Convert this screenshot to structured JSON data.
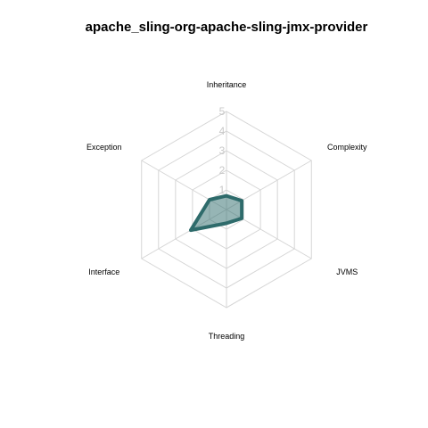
{
  "chart_data": {
    "type": "radar",
    "title": "apache_sling-org-apache-sling-jmx-provider",
    "axes": [
      "Inheritance",
      "Complexity",
      "JVMS",
      "Threading",
      "Interface",
      "Exception"
    ],
    "ticks": [
      "1",
      "2",
      "3",
      "4",
      "5"
    ],
    "range": [
      0,
      5
    ],
    "grid": true,
    "series": [
      {
        "values": [
          0.7,
          0.9,
          0.9,
          0.7,
          2.1,
          1.0
        ],
        "color": "#2e6b6b",
        "fill": "#2e6b6b",
        "fill_opacity": 0.5
      }
    ]
  }
}
